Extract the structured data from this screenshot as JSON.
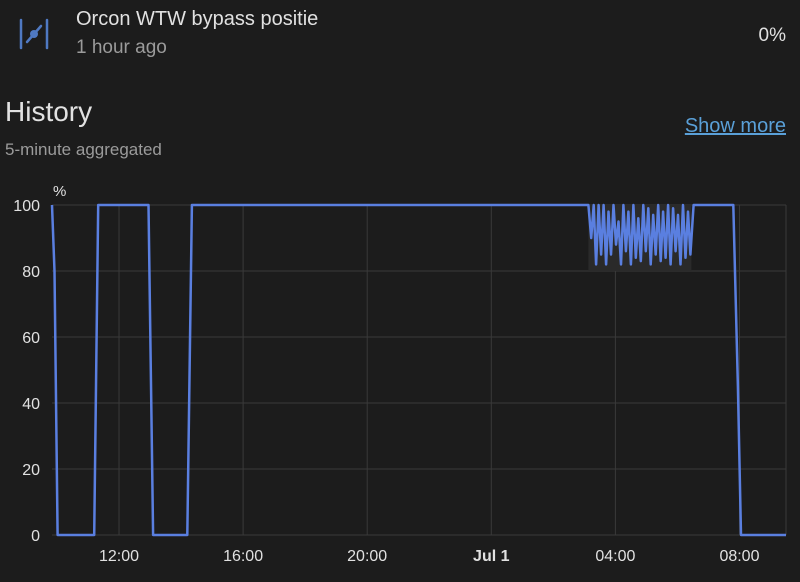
{
  "entity": {
    "name": "Orcon WTW bypass positie",
    "last_changed": "1 hour ago",
    "state": "0%",
    "icon": "valve-icon"
  },
  "history": {
    "title": "History",
    "subtitle": "5-minute aggregated",
    "show_more_label": "Show more"
  },
  "colors": {
    "line": "#5a7fe0",
    "band": "#2a2a2a",
    "grid": "#3a3a3a",
    "link": "#5aa0d8",
    "background": "#1c1c1c"
  },
  "chart_data": {
    "type": "line",
    "unit_label": "%",
    "ylim": [
      0,
      100
    ],
    "y_ticks": [
      0,
      20,
      40,
      60,
      80,
      100
    ],
    "x_ticks": [
      {
        "hours": 12,
        "label": "12:00",
        "bold": false
      },
      {
        "hours": 16,
        "label": "16:00",
        "bold": false
      },
      {
        "hours": 20,
        "label": "20:00",
        "bold": false
      },
      {
        "hours": 24,
        "label": "Jul 1",
        "bold": true
      },
      {
        "hours": 28,
        "label": "04:00",
        "bold": false
      },
      {
        "hours": 32,
        "label": "08:00",
        "bold": false
      }
    ],
    "x_range": [
      9.84,
      33.5
    ],
    "grid": true,
    "series": [
      {
        "x": [
          9.84,
          9.92,
          10.02,
          11.2,
          11.33,
          12.95,
          13.1,
          14.2,
          14.35,
          27.13,
          27.22,
          27.3,
          27.38,
          27.46,
          27.54,
          27.62,
          27.7,
          27.78,
          27.86,
          27.94,
          28.02,
          28.1,
          28.18,
          28.26,
          28.34,
          28.42,
          28.5,
          28.58,
          28.66,
          28.74,
          28.82,
          28.9,
          28.98,
          29.06,
          29.14,
          29.22,
          29.3,
          29.38,
          29.46,
          29.54,
          29.62,
          29.7,
          29.78,
          29.86,
          29.94,
          30.02,
          30.1,
          30.18,
          30.26,
          30.34,
          30.42,
          30.52,
          30.65,
          31.8,
          31.95,
          32.05,
          33.5
        ],
        "y": [
          100,
          80,
          0,
          0,
          100,
          100,
          0,
          0,
          100,
          100,
          90,
          100,
          82,
          100,
          85,
          100,
          82,
          98,
          85,
          100,
          88,
          95,
          82,
          100,
          86,
          98,
          82,
          100,
          84,
          96,
          83,
          100,
          86,
          99,
          82,
          97,
          85,
          100,
          83,
          98,
          84,
          100,
          82,
          99,
          86,
          97,
          82,
          100,
          84,
          98,
          85,
          100,
          100,
          100,
          45,
          0,
          0
        ]
      }
    ],
    "band": {
      "x_from": 27.13,
      "x_to": 30.45,
      "y_from": 80,
      "y_to": 100
    }
  }
}
